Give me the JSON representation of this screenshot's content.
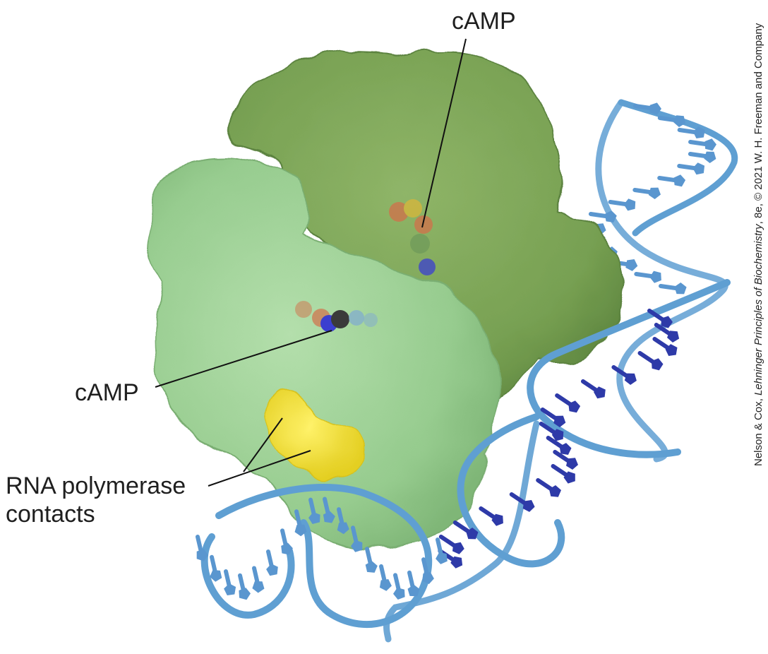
{
  "labels": {
    "camp_top": "cAMP",
    "camp_left": "cAMP",
    "rnap_line1": "RNA polymerase",
    "rnap_line2": "contacts"
  },
  "credit": {
    "prefix": "Nelson & Cox, ",
    "title": "Lehninger Principles of Biochemistry",
    "suffix": ", 8e, © 2021 W. H. Freeman and Company"
  },
  "colors": {
    "subunit_light": "#9dd096",
    "subunit_dark": "#7fa65a",
    "contacts": "#f2e23a",
    "dna_backbone": "#5f9fd2",
    "dna_bases_light": "#5a96cf",
    "dna_bases_dark": "#2e3aa8",
    "camp_carbon": "#3a3a3a",
    "camp_nitrogen": "#3b3fd0",
    "camp_oxygen": "#d2704a"
  }
}
